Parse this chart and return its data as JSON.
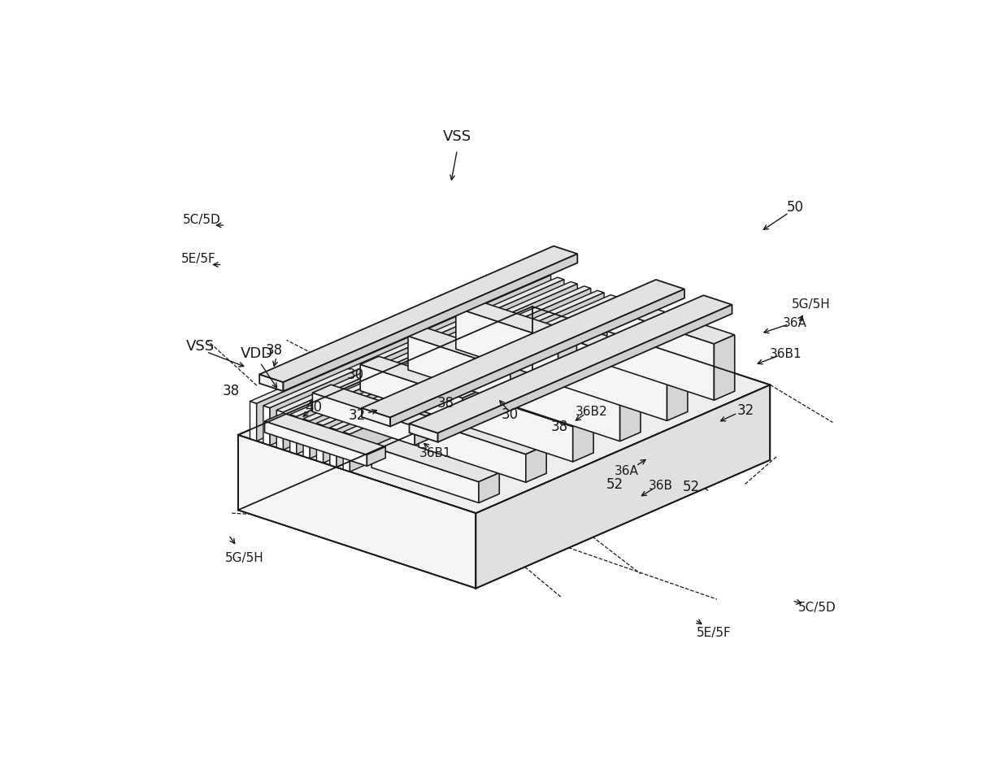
{
  "bg_color": "#ffffff",
  "line_color": "#1a1a1a",
  "line_width": 1.3,
  "fill_front": "#f0f0f0",
  "fill_right": "#d8d8d8",
  "fill_top": "#e8e8e8",
  "fill_white": "#ffffff",
  "labels": {
    "VSS_top": "VSS",
    "VDD": "VDD",
    "VSS_left": "VSS",
    "38a": "38",
    "38b": "38",
    "38c": "38",
    "30a": "30",
    "30b": "30",
    "40": "40",
    "32a": "32",
    "32b": "32",
    "50": "50",
    "36A_r": "36A",
    "36A_b": "36A",
    "36B1_r1": "36B1",
    "36B1_r2": "36B1",
    "36B2": "36B2",
    "36B": "36B",
    "52a": "52",
    "52b": "52",
    "5CD_tl": "5C/5D",
    "5EF_l": "5E/5F",
    "5GH_l": "5G/5H",
    "5GH_r": "5G/5H",
    "5CD_br": "5C/5D",
    "5EF_br": "5E/5F"
  }
}
